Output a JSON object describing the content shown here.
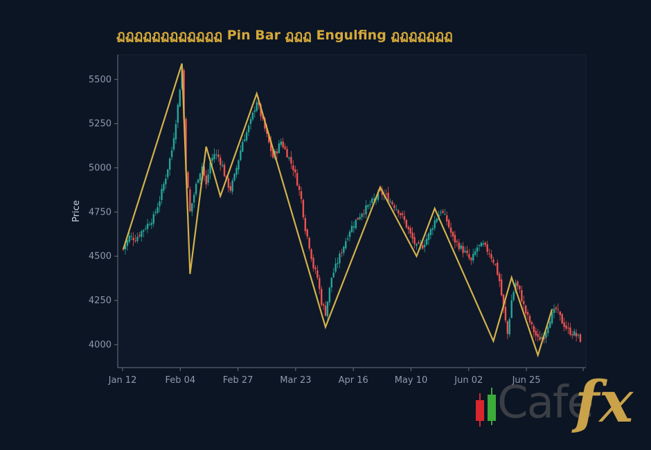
{
  "chart_data": {
    "type": "candlestick",
    "title": "ฏฏฏฏฏฏฏฏฏฏฏฏ Pin Bar ฏฏฏ Engulfing ฏฏฏฏฏฏฏ",
    "xlabel": "",
    "ylabel": "Price",
    "ylim": [
      3870,
      5640
    ],
    "yticks": [
      4000,
      4250,
      4500,
      4750,
      5000,
      5250,
      5500
    ],
    "xticks": [
      "Jan 12",
      "Feb 04",
      "Feb 27",
      "Mar 23",
      "Apr 16",
      "May 10",
      "Jun 02",
      "Jun 25"
    ],
    "x_range_days": [
      0,
      188
    ],
    "grid": false,
    "colors": {
      "background": "#0c1524",
      "plot_background": "#0e1828",
      "up": "#26a69a",
      "down": "#ef5350",
      "zigzag": "#d4b24c",
      "title": "#d4a83a",
      "tick_text": "#8e99ad",
      "axis": "#6b7480"
    },
    "close_path": [
      [
        0,
        4540
      ],
      [
        3,
        4610
      ],
      [
        6,
        4600
      ],
      [
        9,
        4640
      ],
      [
        12,
        4680
      ],
      [
        15,
        4720
      ],
      [
        18,
        4820
      ],
      [
        21,
        4950
      ],
      [
        24,
        5100
      ],
      [
        27,
        5350
      ],
      [
        29,
        5560
      ],
      [
        31,
        5000
      ],
      [
        33,
        4750
      ],
      [
        35,
        4850
      ],
      [
        37,
        4950
      ],
      [
        39,
        5010
      ],
      [
        41,
        4900
      ],
      [
        43,
        5030
      ],
      [
        45,
        5080
      ],
      [
        47,
        5060
      ],
      [
        49,
        5010
      ],
      [
        51,
        4920
      ],
      [
        53,
        4880
      ],
      [
        55,
        4950
      ],
      [
        57,
        5050
      ],
      [
        59,
        5150
      ],
      [
        61,
        5200
      ],
      [
        63,
        5260
      ],
      [
        66,
        5380
      ],
      [
        68,
        5300
      ],
      [
        70,
        5220
      ],
      [
        72,
        5140
      ],
      [
        74,
        5060
      ],
      [
        76,
        5100
      ],
      [
        78,
        5150
      ],
      [
        81,
        5080
      ],
      [
        84,
        5000
      ],
      [
        86,
        4920
      ],
      [
        88,
        4820
      ],
      [
        90,
        4660
      ],
      [
        92,
        4560
      ],
      [
        94,
        4440
      ],
      [
        96,
        4380
      ],
      [
        98,
        4240
      ],
      [
        100,
        4180
      ],
      [
        103,
        4380
      ],
      [
        106,
        4470
      ],
      [
        109,
        4560
      ],
      [
        112,
        4650
      ],
      [
        115,
        4700
      ],
      [
        118,
        4750
      ],
      [
        121,
        4780
      ],
      [
        124,
        4820
      ],
      [
        127,
        4860
      ],
      [
        130,
        4840
      ],
      [
        133,
        4800
      ],
      [
        136,
        4760
      ],
      [
        139,
        4700
      ],
      [
        142,
        4620
      ],
      [
        145,
        4550
      ],
      [
        148,
        4560
      ],
      [
        151,
        4620
      ],
      [
        154,
        4700
      ],
      [
        157,
        4760
      ],
      [
        160,
        4700
      ],
      [
        163,
        4600
      ],
      [
        166,
        4560
      ],
      [
        169,
        4520
      ],
      [
        172,
        4470
      ],
      [
        175,
        4550
      ],
      [
        178,
        4560
      ],
      [
        181,
        4520
      ],
      [
        184,
        4450
      ],
      [
        186,
        4360
      ],
      [
        188,
        4200
      ],
      [
        190,
        4060
      ],
      [
        192,
        4250
      ],
      [
        194,
        4350
      ],
      [
        196,
        4300
      ],
      [
        199,
        4180
      ],
      [
        202,
        4100
      ],
      [
        205,
        4030
      ],
      [
        208,
        4050
      ],
      [
        211,
        4150
      ],
      [
        214,
        4200
      ],
      [
        217,
        4130
      ],
      [
        220,
        4080
      ],
      [
        223,
        4060
      ],
      [
        226,
        4030
      ]
    ],
    "zigzag": [
      [
        0,
        4540
      ],
      [
        29,
        5590
      ],
      [
        33,
        4400
      ],
      [
        41,
        5120
      ],
      [
        48,
        4840
      ],
      [
        66,
        5420
      ],
      [
        100,
        4100
      ],
      [
        127,
        4890
      ],
      [
        145,
        4500
      ],
      [
        154,
        4770
      ],
      [
        183,
        4020
      ],
      [
        192,
        4380
      ],
      [
        205,
        3940
      ],
      [
        212,
        4200
      ]
    ]
  }
}
